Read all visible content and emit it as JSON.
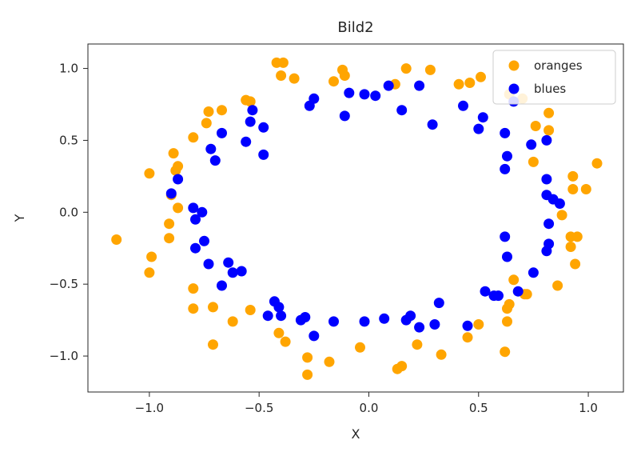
{
  "chart_data": {
    "type": "scatter",
    "title": "Bild2",
    "xlabel": "X",
    "ylabel": "Y",
    "xlim": [
      -1.28,
      1.16
    ],
    "ylim": [
      -1.25,
      1.17
    ],
    "xticks": [
      -1.0,
      -0.5,
      0.0,
      0.5,
      1.0
    ],
    "xtick_labels": [
      "−1.0",
      "−0.5",
      "0.0",
      "0.5",
      "1.0"
    ],
    "yticks": [
      1.0,
      0.5,
      0.0,
      -0.5,
      -1.0
    ],
    "ytick_labels": [
      "1.0",
      "0.5",
      "0.0",
      "−0.5",
      "−1.0"
    ],
    "grid": false,
    "legend_position": "top-right",
    "series": [
      {
        "name": "oranges",
        "color": "#FFA500",
        "points": [
          [
            -1.15,
            -0.19
          ],
          [
            -1.0,
            0.27
          ],
          [
            -0.99,
            -0.31
          ],
          [
            -1.0,
            -0.42
          ],
          [
            -0.91,
            -0.08
          ],
          [
            -0.91,
            -0.18
          ],
          [
            -0.9,
            0.12
          ],
          [
            -0.89,
            0.41
          ],
          [
            -0.88,
            0.29
          ],
          [
            -0.87,
            0.32
          ],
          [
            -0.87,
            0.03
          ],
          [
            -0.8,
            0.52
          ],
          [
            -0.8,
            -0.53
          ],
          [
            -0.8,
            -0.67
          ],
          [
            -0.74,
            0.62
          ],
          [
            -0.73,
            0.7
          ],
          [
            -0.71,
            -0.66
          ],
          [
            -0.71,
            -0.92
          ],
          [
            -0.67,
            0.71
          ],
          [
            -0.62,
            -0.76
          ],
          [
            -0.56,
            0.78
          ],
          [
            -0.54,
            0.77
          ],
          [
            -0.54,
            -0.68
          ],
          [
            -0.42,
            1.04
          ],
          [
            -0.39,
            1.04
          ],
          [
            -0.4,
            0.95
          ],
          [
            -0.34,
            0.93
          ],
          [
            -0.41,
            -0.84
          ],
          [
            -0.38,
            -0.9
          ],
          [
            -0.28,
            -1.01
          ],
          [
            -0.28,
            -1.13
          ],
          [
            -0.18,
            -1.04
          ],
          [
            -0.16,
            0.91
          ],
          [
            -0.12,
            0.99
          ],
          [
            -0.11,
            0.95
          ],
          [
            -0.04,
            -0.94
          ],
          [
            0.12,
            0.89
          ],
          [
            0.17,
            1.0
          ],
          [
            0.13,
            -1.09
          ],
          [
            0.15,
            -1.07
          ],
          [
            0.22,
            -0.92
          ],
          [
            0.28,
            0.99
          ],
          [
            0.33,
            -0.99
          ],
          [
            0.41,
            0.89
          ],
          [
            0.46,
            0.9
          ],
          [
            0.51,
            0.94
          ],
          [
            0.45,
            -0.87
          ],
          [
            0.5,
            -0.78
          ],
          [
            0.62,
            -0.97
          ],
          [
            0.63,
            -0.67
          ],
          [
            0.64,
            -0.64
          ],
          [
            0.63,
            -0.76
          ],
          [
            0.66,
            -0.47
          ],
          [
            0.71,
            -0.57
          ],
          [
            0.64,
            0.82
          ],
          [
            0.7,
            0.79
          ],
          [
            0.72,
            -0.57
          ],
          [
            0.75,
            0.35
          ],
          [
            0.76,
            0.6
          ],
          [
            0.82,
            0.57
          ],
          [
            0.82,
            0.69
          ],
          [
            0.86,
            -0.51
          ],
          [
            0.88,
            -0.02
          ],
          [
            0.92,
            -0.17
          ],
          [
            0.92,
            -0.24
          ],
          [
            0.93,
            0.16
          ],
          [
            0.93,
            0.25
          ],
          [
            0.94,
            -0.36
          ],
          [
            0.95,
            -0.17
          ],
          [
            0.99,
            0.16
          ],
          [
            1.04,
            0.34
          ]
        ]
      },
      {
        "name": "blues",
        "color": "#0000FF",
        "points": [
          [
            -0.9,
            0.13
          ],
          [
            -0.87,
            0.23
          ],
          [
            -0.8,
            0.03
          ],
          [
            -0.79,
            -0.05
          ],
          [
            -0.76,
            0.0
          ],
          [
            -0.79,
            -0.25
          ],
          [
            -0.75,
            -0.2
          ],
          [
            -0.73,
            -0.36
          ],
          [
            -0.72,
            0.44
          ],
          [
            -0.7,
            0.36
          ],
          [
            -0.67,
            0.55
          ],
          [
            -0.67,
            -0.51
          ],
          [
            -0.64,
            -0.35
          ],
          [
            -0.62,
            -0.42
          ],
          [
            -0.58,
            -0.41
          ],
          [
            -0.56,
            0.49
          ],
          [
            -0.54,
            0.63
          ],
          [
            -0.53,
            0.71
          ],
          [
            -0.48,
            0.59
          ],
          [
            -0.48,
            0.4
          ],
          [
            -0.46,
            -0.72
          ],
          [
            -0.43,
            -0.62
          ],
          [
            -0.41,
            -0.66
          ],
          [
            -0.4,
            -0.72
          ],
          [
            -0.31,
            -0.75
          ],
          [
            -0.29,
            -0.73
          ],
          [
            -0.27,
            0.74
          ],
          [
            -0.25,
            0.79
          ],
          [
            -0.25,
            -0.86
          ],
          [
            -0.16,
            -0.76
          ],
          [
            -0.11,
            0.67
          ],
          [
            -0.09,
            0.83
          ],
          [
            -0.02,
            0.82
          ],
          [
            0.03,
            0.81
          ],
          [
            0.09,
            0.88
          ],
          [
            -0.02,
            -0.76
          ],
          [
            0.07,
            -0.74
          ],
          [
            0.15,
            0.71
          ],
          [
            0.17,
            -0.75
          ],
          [
            0.19,
            -0.72
          ],
          [
            0.23,
            0.88
          ],
          [
            0.23,
            -0.8
          ],
          [
            0.29,
            0.61
          ],
          [
            0.3,
            -0.78
          ],
          [
            0.32,
            -0.63
          ],
          [
            0.43,
            0.74
          ],
          [
            0.45,
            -0.79
          ],
          [
            0.5,
            0.58
          ],
          [
            0.52,
            0.66
          ],
          [
            0.53,
            -0.55
          ],
          [
            0.57,
            -0.58
          ],
          [
            0.59,
            -0.58
          ],
          [
            0.62,
            0.55
          ],
          [
            0.62,
            0.3
          ],
          [
            0.63,
            0.39
          ],
          [
            0.62,
            -0.17
          ],
          [
            0.63,
            -0.31
          ],
          [
            0.66,
            0.77
          ],
          [
            0.68,
            -0.55
          ],
          [
            0.74,
            0.47
          ],
          [
            0.75,
            -0.42
          ],
          [
            0.81,
            0.5
          ],
          [
            0.81,
            0.23
          ],
          [
            0.81,
            0.12
          ],
          [
            0.82,
            -0.08
          ],
          [
            0.82,
            -0.22
          ],
          [
            0.81,
            -0.27
          ],
          [
            0.84,
            0.09
          ],
          [
            0.87,
            0.06
          ]
        ]
      }
    ]
  }
}
